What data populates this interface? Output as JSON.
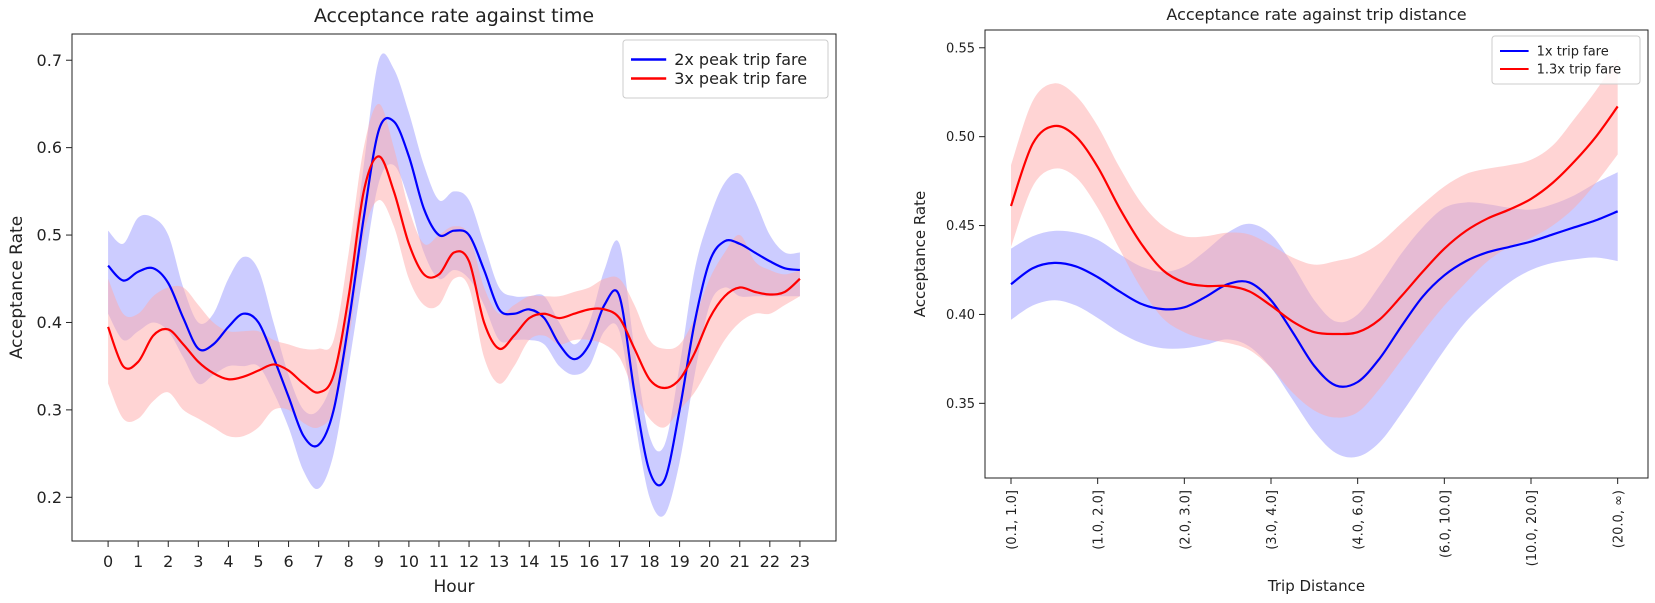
{
  "chart_data": [
    {
      "type": "line",
      "title": "Acceptance rate against time",
      "xlabel": "Hour",
      "ylabel": "Acceptance Rate",
      "xlim": [
        -1.2,
        24.2
      ],
      "ylim": [
        0.15,
        0.73
      ],
      "xticks": [
        0,
        1,
        2,
        3,
        4,
        5,
        6,
        7,
        8,
        9,
        10,
        11,
        12,
        13,
        14,
        15,
        16,
        17,
        18,
        19,
        20,
        21,
        22,
        23
      ],
      "xtick_labels": [
        "0",
        "1",
        "2",
        "3",
        "4",
        "5",
        "6",
        "7",
        "8",
        "9",
        "10",
        "11",
        "12",
        "13",
        "14",
        "15",
        "16",
        "17",
        "18",
        "19",
        "20",
        "21",
        "22",
        "23"
      ],
      "yticks": [
        0.2,
        0.3,
        0.4,
        0.5,
        0.6,
        0.7
      ],
      "ytick_labels": [
        "0.2",
        "0.3",
        "0.4",
        "0.5",
        "0.6",
        "0.7"
      ],
      "legend_position": "top-right",
      "series": [
        {
          "name": "2x peak trip fare",
          "color": "#0000ff",
          "band_color": "#9999ff",
          "x": [
            0,
            0.5,
            1,
            1.5,
            2,
            2.5,
            3,
            3.5,
            4,
            4.5,
            5,
            5.5,
            6,
            6.5,
            7,
            7.5,
            8,
            8.5,
            9,
            9.5,
            10,
            10.5,
            11,
            11.5,
            12,
            12.5,
            13,
            13.5,
            14,
            14.5,
            15,
            15.5,
            16,
            16.5,
            17,
            17.5,
            18,
            18.5,
            19,
            19.5,
            20,
            20.5,
            21,
            21.5,
            22,
            22.5,
            23
          ],
          "values": [
            0.465,
            0.448,
            0.458,
            0.462,
            0.445,
            0.405,
            0.37,
            0.375,
            0.395,
            0.41,
            0.4,
            0.36,
            0.315,
            0.27,
            0.26,
            0.3,
            0.4,
            0.52,
            0.62,
            0.63,
            0.59,
            0.53,
            0.5,
            0.505,
            0.5,
            0.46,
            0.415,
            0.41,
            0.415,
            0.405,
            0.375,
            0.358,
            0.375,
            0.42,
            0.43,
            0.32,
            0.23,
            0.22,
            0.3,
            0.4,
            0.47,
            0.493,
            0.49,
            0.48,
            0.47,
            0.462,
            0.46
          ],
          "lower": [
            0.41,
            0.38,
            0.39,
            0.4,
            0.39,
            0.36,
            0.33,
            0.34,
            0.35,
            0.35,
            0.35,
            0.32,
            0.28,
            0.23,
            0.21,
            0.25,
            0.35,
            0.46,
            0.56,
            0.58,
            0.54,
            0.48,
            0.45,
            0.46,
            0.45,
            0.42,
            0.38,
            0.38,
            0.38,
            0.375,
            0.35,
            0.34,
            0.35,
            0.39,
            0.39,
            0.29,
            0.2,
            0.18,
            0.24,
            0.34,
            0.42,
            0.44,
            0.43,
            0.43,
            0.43,
            0.43,
            0.43
          ],
          "upper": [
            0.505,
            0.49,
            0.52,
            0.52,
            0.5,
            0.44,
            0.4,
            0.41,
            0.45,
            0.475,
            0.46,
            0.4,
            0.34,
            0.3,
            0.3,
            0.34,
            0.44,
            0.58,
            0.7,
            0.69,
            0.64,
            0.58,
            0.54,
            0.55,
            0.54,
            0.49,
            0.44,
            0.43,
            0.43,
            0.43,
            0.4,
            0.375,
            0.4,
            0.46,
            0.49,
            0.37,
            0.27,
            0.26,
            0.35,
            0.46,
            0.52,
            0.56,
            0.57,
            0.54,
            0.5,
            0.48,
            0.48
          ]
        },
        {
          "name": "3x peak trip fare",
          "color": "#ff0000",
          "band_color": "#ffaaaa",
          "x": [
            0,
            0.5,
            1,
            1.5,
            2,
            2.5,
            3,
            3.5,
            4,
            4.5,
            5,
            5.5,
            6,
            6.5,
            7,
            7.5,
            8,
            8.5,
            9,
            9.5,
            10,
            10.5,
            11,
            11.5,
            12,
            12.5,
            13,
            13.5,
            14,
            14.5,
            15,
            15.5,
            16,
            16.5,
            17,
            17.5,
            18,
            18.5,
            19,
            19.5,
            20,
            20.5,
            21,
            21.5,
            22,
            22.5,
            23
          ],
          "values": [
            0.395,
            0.35,
            0.355,
            0.385,
            0.392,
            0.375,
            0.355,
            0.342,
            0.335,
            0.338,
            0.345,
            0.352,
            0.345,
            0.33,
            0.32,
            0.34,
            0.43,
            0.55,
            0.59,
            0.55,
            0.49,
            0.455,
            0.455,
            0.48,
            0.47,
            0.4,
            0.37,
            0.385,
            0.405,
            0.41,
            0.405,
            0.41,
            0.415,
            0.415,
            0.405,
            0.37,
            0.335,
            0.325,
            0.335,
            0.365,
            0.405,
            0.43,
            0.44,
            0.435,
            0.432,
            0.435,
            0.45
          ],
          "lower": [
            0.33,
            0.29,
            0.29,
            0.31,
            0.32,
            0.3,
            0.29,
            0.28,
            0.27,
            0.27,
            0.28,
            0.3,
            0.3,
            0.285,
            0.28,
            0.3,
            0.38,
            0.5,
            0.54,
            0.51,
            0.45,
            0.42,
            0.42,
            0.45,
            0.44,
            0.36,
            0.33,
            0.35,
            0.38,
            0.385,
            0.375,
            0.38,
            0.38,
            0.375,
            0.36,
            0.32,
            0.29,
            0.28,
            0.3,
            0.32,
            0.35,
            0.38,
            0.4,
            0.41,
            0.41,
            0.42,
            0.43
          ],
          "upper": [
            0.45,
            0.41,
            0.41,
            0.43,
            0.44,
            0.44,
            0.42,
            0.4,
            0.39,
            0.39,
            0.39,
            0.38,
            0.375,
            0.37,
            0.37,
            0.38,
            0.48,
            0.6,
            0.65,
            0.6,
            0.53,
            0.49,
            0.5,
            0.51,
            0.5,
            0.44,
            0.41,
            0.42,
            0.43,
            0.43,
            0.43,
            0.435,
            0.44,
            0.45,
            0.45,
            0.42,
            0.38,
            0.37,
            0.375,
            0.405,
            0.45,
            0.48,
            0.5,
            0.47,
            0.46,
            0.455,
            0.46
          ]
        }
      ]
    },
    {
      "type": "line",
      "title": "Acceptance rate against trip distance",
      "xlabel": "Trip Distance",
      "ylabel": "Acceptance Rate",
      "xlim": [
        -0.3,
        7.35
      ],
      "ylim": [
        0.308,
        0.56
      ],
      "xticks": [
        0,
        1,
        2,
        3,
        4,
        5,
        6,
        7
      ],
      "xtick_labels": [
        "(0.1, 1.0]",
        "(1.0, 2.0]",
        "(2.0, 3.0]",
        "(3.0, 4.0]",
        "(4.0, 6.0]",
        "(6.0, 10.0]",
        "(10.0, 20.0]",
        "(20.0, ∞)"
      ],
      "yticks": [
        0.35,
        0.4,
        0.45,
        0.5,
        0.55
      ],
      "ytick_labels": [
        "0.35",
        "0.40",
        "0.45",
        "0.50",
        "0.55"
      ],
      "legend_position": "top-right",
      "series": [
        {
          "name": "1x trip fare",
          "color": "#0000ff",
          "band_color": "#9999ff",
          "x": [
            0,
            0.25,
            0.5,
            0.75,
            1,
            1.25,
            1.5,
            1.75,
            2,
            2.25,
            2.5,
            2.75,
            3,
            3.25,
            3.5,
            3.75,
            4,
            4.25,
            4.5,
            4.75,
            5,
            5.25,
            5.5,
            5.75,
            6,
            6.25,
            6.5,
            6.75,
            7
          ],
          "values": [
            0.417,
            0.426,
            0.429,
            0.427,
            0.421,
            0.413,
            0.406,
            0.403,
            0.404,
            0.41,
            0.417,
            0.418,
            0.408,
            0.39,
            0.371,
            0.36,
            0.362,
            0.375,
            0.393,
            0.41,
            0.422,
            0.43,
            0.435,
            0.438,
            0.441,
            0.445,
            0.449,
            0.453,
            0.458
          ],
          "lower": [
            0.397,
            0.405,
            0.408,
            0.405,
            0.398,
            0.39,
            0.384,
            0.381,
            0.381,
            0.383,
            0.386,
            0.382,
            0.37,
            0.352,
            0.334,
            0.322,
            0.32,
            0.328,
            0.344,
            0.362,
            0.38,
            0.396,
            0.408,
            0.418,
            0.425,
            0.429,
            0.431,
            0.432,
            0.43
          ],
          "upper": [
            0.437,
            0.444,
            0.447,
            0.446,
            0.442,
            0.434,
            0.427,
            0.424,
            0.427,
            0.436,
            0.446,
            0.451,
            0.445,
            0.428,
            0.408,
            0.396,
            0.4,
            0.416,
            0.434,
            0.449,
            0.46,
            0.463,
            0.462,
            0.46,
            0.459,
            0.462,
            0.467,
            0.474,
            0.48
          ]
        },
        {
          "name": "1.3x trip fare",
          "color": "#ff0000",
          "band_color": "#ffaaaa",
          "x": [
            0,
            0.25,
            0.5,
            0.75,
            1,
            1.25,
            1.5,
            1.75,
            2,
            2.25,
            2.5,
            2.75,
            3,
            3.25,
            3.5,
            3.75,
            4,
            4.25,
            4.5,
            4.75,
            5,
            5.25,
            5.5,
            5.75,
            6,
            6.25,
            6.5,
            6.75,
            7
          ],
          "values": [
            0.461,
            0.496,
            0.506,
            0.5,
            0.483,
            0.46,
            0.44,
            0.425,
            0.418,
            0.416,
            0.416,
            0.413,
            0.405,
            0.396,
            0.39,
            0.389,
            0.39,
            0.397,
            0.41,
            0.424,
            0.437,
            0.447,
            0.454,
            0.459,
            0.465,
            0.474,
            0.486,
            0.5,
            0.517
          ],
          "lower": [
            0.438,
            0.472,
            0.482,
            0.477,
            0.46,
            0.437,
            0.415,
            0.398,
            0.39,
            0.386,
            0.384,
            0.38,
            0.37,
            0.356,
            0.346,
            0.342,
            0.345,
            0.358,
            0.374,
            0.39,
            0.405,
            0.418,
            0.43,
            0.438,
            0.443,
            0.45,
            0.46,
            0.474,
            0.49
          ],
          "upper": [
            0.484,
            0.52,
            0.53,
            0.523,
            0.506,
            0.483,
            0.463,
            0.45,
            0.444,
            0.444,
            0.446,
            0.445,
            0.439,
            0.432,
            0.428,
            0.43,
            0.433,
            0.44,
            0.451,
            0.462,
            0.472,
            0.479,
            0.482,
            0.484,
            0.487,
            0.495,
            0.51,
            0.526,
            0.544
          ]
        }
      ]
    }
  ]
}
